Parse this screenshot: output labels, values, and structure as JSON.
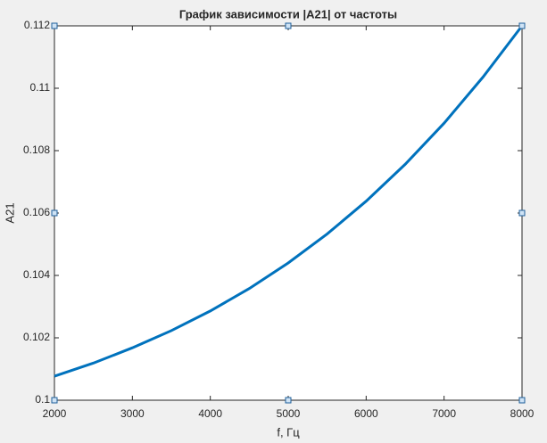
{
  "chart_data": {
    "type": "line",
    "title": "График зависимости |A21| от частоты",
    "xlabel": "f, Гц",
    "ylabel": "A21",
    "x": [
      2000,
      2500,
      3000,
      3500,
      4000,
      4500,
      5000,
      5500,
      6000,
      6500,
      7000,
      7500,
      8000
    ],
    "series": [
      {
        "color": "#0072bd",
        "values": [
          0.10077,
          0.10119,
          0.10168,
          0.10223,
          0.10286,
          0.10358,
          0.1044,
          0.10533,
          0.10638,
          0.10756,
          0.10888,
          0.11036,
          0.112
        ]
      }
    ],
    "xlim": [
      2000,
      8000
    ],
    "xticks": [
      2000,
      3000,
      4000,
      5000,
      6000,
      7000,
      8000
    ],
    "ylim": [
      0.1,
      0.112
    ],
    "yticks": [
      0.1,
      0.102,
      0.104,
      0.106,
      0.108,
      0.11,
      0.112
    ],
    "grid": false
  }
}
